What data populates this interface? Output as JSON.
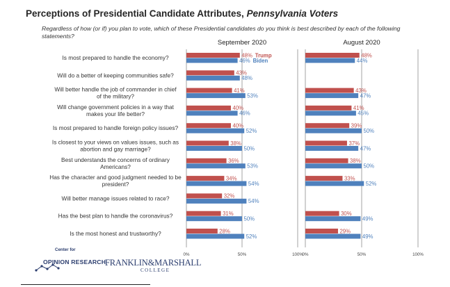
{
  "title": {
    "main": "Perceptions of Presidential Candidate Attributes,",
    "emph": "Pennsylvania Voters"
  },
  "subtitle": "Regardless of how (or if) you plan to vote, which of these Presidential candidates do you think is best described by each of the following statements?",
  "logo": {
    "line1": "Center for",
    "line2": "OPINION RESEARCH",
    "name": "FRANKLIN&MARSHALL",
    "college": "COLLEGE"
  },
  "colors": {
    "trump": "#c0504d",
    "biden": "#4f81bd"
  },
  "chart_data": [
    {
      "type": "bar",
      "title": "September 2020",
      "xlim": [
        0,
        100
      ],
      "x_ticks": [
        "0%",
        "50%",
        "100%"
      ],
      "legend": {
        "placement": "inline-first-row"
      },
      "categories": [
        "Is most prepared to handle the economy?",
        "Will do a better of keeping communities safe?",
        "Will better handle the job of commander in chief of the military?",
        "Will change government policies in a way that makes your life better?",
        "Is most prepared to handle foreign policy issues?",
        "Is closest to your views on values issues, such as abortion and gay marriage?",
        "Best understands the concerns of ordinary Americans?",
        "Has the character and good judgment needed to be president?",
        "Will better manage issues related to race?",
        "Has the best plan to handle the coronavirus?",
        "Is the most honest and trustworthy?"
      ],
      "series": [
        {
          "name": "Trump",
          "values": [
            48,
            43,
            41,
            40,
            40,
            38,
            36,
            34,
            32,
            31,
            28
          ],
          "labels": [
            "48%",
            "43%",
            "41%",
            "40%",
            "40%",
            "38%",
            "36%",
            "34%",
            "32%",
            "31%",
            "28%"
          ]
        },
        {
          "name": "Biden",
          "values": [
            46,
            48,
            53,
            46,
            52,
            50,
            53,
            54,
            54,
            50,
            52
          ],
          "labels": [
            "46%",
            "48%",
            "53%",
            "46%",
            "52%",
            "50%",
            "53%",
            "54%",
            "54%",
            "50%",
            "52%"
          ]
        }
      ]
    },
    {
      "type": "bar",
      "title": "August 2020",
      "xlim": [
        0,
        100
      ],
      "x_ticks": [
        "0%",
        "50%",
        "100%"
      ],
      "categories": [
        "Is most prepared to handle the economy?",
        "Will do a better of keeping communities safe?",
        "Will better handle the job of commander in chief of the military?",
        "Will change government policies in a way that makes your life better?",
        "Is most prepared to handle foreign policy issues?",
        "Is closest to your views on values issues, such as abortion and gay marriage?",
        "Best understands the concerns of ordinary Americans?",
        "Has the character and good judgment needed to be president?",
        "Will better manage issues related to race?",
        "Has the best plan to handle the coronavirus?",
        "Is the most honest and trustworthy?"
      ],
      "series": [
        {
          "name": "Trump",
          "values": [
            48,
            null,
            43,
            41,
            39,
            37,
            38,
            33,
            null,
            30,
            29
          ],
          "labels": [
            "48%",
            "",
            "43%",
            "41%",
            "39%",
            "37%",
            "38%",
            "33%",
            "",
            "30%",
            "29%"
          ]
        },
        {
          "name": "Biden",
          "values": [
            44,
            null,
            47,
            45,
            50,
            47,
            50,
            52,
            null,
            49,
            49
          ],
          "labels": [
            "44%",
            "",
            "47%",
            "45%",
            "50%",
            "47%",
            "50%",
            "52%",
            "",
            "49%",
            "49%"
          ]
        }
      ]
    }
  ]
}
